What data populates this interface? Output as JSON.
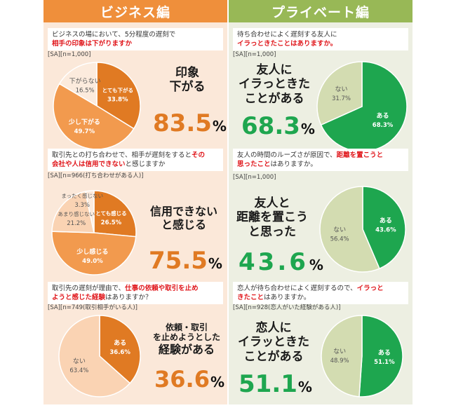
{
  "colors": {
    "biz_header": "#ef8f3b",
    "pri_header": "#98b856",
    "biz_bg": "#fbe8d9",
    "pri_bg": "#edefe2",
    "highlight_red": "#e0161b",
    "biz_dark": "#e07a23",
    "biz_mid": "#f29a4e",
    "biz_light": "#fad3b3",
    "biz_pale": "#fcebdd",
    "pri_green": "#1ea64f",
    "pri_pale": "#d3dcb1"
  },
  "business": {
    "header": "ビジネス編",
    "panels": [
      {
        "question_parts": [
          {
            "t": "ビジネスの場において、5分程度の遅刻で",
            "hl": false
          },
          {
            "t": "相手の印象は下がりますか",
            "hl": true
          }
        ],
        "q1": "ビジネスの場において、5分程度の遅刻で",
        "q2": "相手の印象は下がりますか",
        "sample": "[SA][n=1,000]",
        "headline": [
          "印象",
          "下がる"
        ],
        "big_number": "83.5",
        "pct": "%"
      },
      {
        "q1": "取引先との打ち合わせで、相手が遅刻をすると",
        "q1_hl": "その",
        "q2_hl": "会社や人は信用できない",
        "q2": "と感じますか",
        "sample": "[SA][n=966(打ち合わせがある人)]",
        "headline": [
          "信用できない",
          "と感じる"
        ],
        "big_number": "75.5",
        "pct": "%"
      },
      {
        "q1": "取引先の遅刻が理由で、",
        "q1_hl": "仕事の依頼や取引を止め",
        "q2_hl": "ようと感じた経験",
        "q2": "はありますか？",
        "sample": "[SA][n=749(取引相手がいる人)]",
        "headline": [
          "依頼・取引",
          "を止めようとした",
          "経験がある"
        ],
        "big_number": "36.6",
        "pct": "%"
      }
    ]
  },
  "private": {
    "header": "プライベート編",
    "panels": [
      {
        "q1": "待ち合わせによく遅刻する友人に",
        "q2_hl": "イラっときたことはありますか。",
        "sample": "[SA][n=1,000]",
        "headline": [
          "友人に",
          "イラっときた",
          "ことがある"
        ],
        "big_number": "68.3",
        "pct": "%"
      },
      {
        "q1": "友人の時間のルーズさが原因で、",
        "q1_hl": "距離を置こうと",
        "q2_hl": "思ったこと",
        "q2": "はありますか。",
        "sample": "[SA][n=1,000]",
        "headline": [
          "友人と",
          "距離を置こう",
          "と思った"
        ],
        "big_number": "43.6",
        "pct": "%"
      },
      {
        "q1": "恋人が待ち合わせによく遅刻するので、",
        "q1_hl": "イラっと",
        "q2_hl": "きたこと",
        "q2": "はありますか。",
        "sample": "[SA][n=928(恋人がいた経験がある人)]",
        "headline": [
          "恋人に",
          "イラッときた",
          "ことがある"
        ],
        "big_number": "51.1",
        "pct": "%"
      }
    ]
  },
  "chart_data": [
    {
      "type": "pie",
      "title": "相手の印象は下がりますか",
      "labels": [
        "とても下がる",
        "少し下がる",
        "下がらない"
      ],
      "values": [
        33.8,
        49.7,
        16.5
      ],
      "colors": [
        "#e07a23",
        "#f29a4e",
        "#fcebdd"
      ],
      "label_colors": [
        "#ffffff",
        "#ffffff",
        "#555555"
      ]
    },
    {
      "type": "pie",
      "title": "会社や人は信用できないと感じますか",
      "labels": [
        "とても感じる",
        "少し感じる",
        "あまり感じない",
        "まったく感じない"
      ],
      "values": [
        26.5,
        49.0,
        21.2,
        3.3
      ],
      "colors": [
        "#e07a23",
        "#f29a4e",
        "#fad3b3",
        "#fcebdd"
      ],
      "label_colors": [
        "#ffffff",
        "#ffffff",
        "#555555",
        "#555555"
      ]
    },
    {
      "type": "pie",
      "title": "仕事の依頼や取引を止めようと感じた経験",
      "labels": [
        "ある",
        "ない"
      ],
      "values": [
        36.6,
        63.4
      ],
      "colors": [
        "#e07a23",
        "#fad3b3"
      ],
      "label_colors": [
        "#ffffff",
        "#555555"
      ]
    },
    {
      "type": "pie",
      "title": "友人にイラっときたこと",
      "labels": [
        "ある",
        "ない"
      ],
      "values": [
        68.3,
        31.7
      ],
      "colors": [
        "#1ea64f",
        "#d3dcb1"
      ],
      "label_colors": [
        "#ffffff",
        "#555555"
      ]
    },
    {
      "type": "pie",
      "title": "距離を置こうと思ったこと",
      "labels": [
        "ある",
        "ない"
      ],
      "values": [
        43.6,
        56.4
      ],
      "colors": [
        "#1ea64f",
        "#d3dcb1"
      ],
      "label_colors": [
        "#ffffff",
        "#555555"
      ]
    },
    {
      "type": "pie",
      "title": "恋人にイラっときたこと",
      "labels": [
        "ある",
        "ない"
      ],
      "values": [
        51.1,
        48.9
      ],
      "colors": [
        "#1ea64f",
        "#d3dcb1"
      ],
      "label_colors": [
        "#ffffff",
        "#555555"
      ]
    }
  ]
}
